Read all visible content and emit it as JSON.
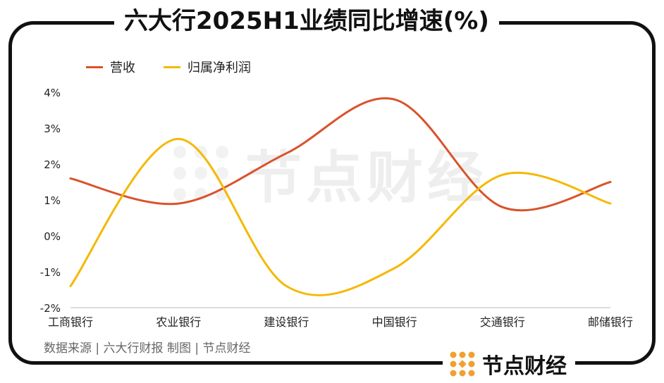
{
  "title": "六大行2025H1业绩同比增速(%)",
  "source_note": "数据来源 | 六大行财报   制图 | 节点财经",
  "brand": {
    "name": "节点财经",
    "icon": "dot-grid-logo-icon",
    "accent": "#f0a030"
  },
  "watermark": {
    "text": "节点财经"
  },
  "chart_data": {
    "type": "line",
    "title": "六大行2025H1业绩同比增速(%)",
    "categories": [
      "工商银行",
      "农业银行",
      "建设银行",
      "中国银行",
      "交通银行",
      "邮储银行"
    ],
    "series": [
      {
        "name": "营收",
        "color": "#d9532b",
        "values": [
          1.6,
          0.9,
          2.3,
          3.8,
          0.8,
          1.5
        ]
      },
      {
        "name": "归属净利润",
        "color": "#f5b800",
        "values": [
          -1.4,
          2.7,
          -1.4,
          -0.9,
          1.7,
          0.9
        ]
      }
    ],
    "ylim": [
      -2,
      4
    ],
    "yticks": [
      "4%",
      "3%",
      "2%",
      "1%",
      "0%",
      "-1%",
      "-2%"
    ],
    "legend_position": "top-left",
    "grid": false,
    "xlabel": "",
    "ylabel": ""
  }
}
